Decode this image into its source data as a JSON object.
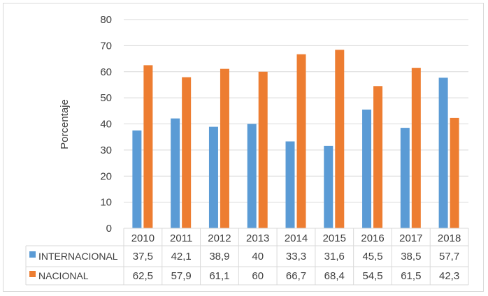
{
  "chart_data": {
    "type": "bar",
    "title": "",
    "xlabel": "",
    "ylabel": "Porcentaje",
    "ylim": [
      0,
      80
    ],
    "yticks": [
      0,
      10,
      20,
      30,
      40,
      50,
      60,
      70,
      80
    ],
    "grid": true,
    "legend": "data-table",
    "categories": [
      "2010",
      "2011",
      "2012",
      "2013",
      "2014",
      "2015",
      "2016",
      "2017",
      "2018"
    ],
    "series": [
      {
        "name": "INTERNACIONAL",
        "color": "#5b9bd5",
        "values": [
          37.5,
          42.1,
          38.9,
          40,
          33.3,
          31.6,
          45.5,
          38.5,
          57.7
        ],
        "labels": [
          "37,5",
          "42,1",
          "38,9",
          "40",
          "33,3",
          "31,6",
          "45,5",
          "38,5",
          "57,7"
        ]
      },
      {
        "name": "NACIONAL",
        "color": "#ed7d31",
        "values": [
          62.5,
          57.9,
          61.1,
          60,
          66.7,
          68.4,
          54.5,
          61.5,
          42.3
        ],
        "labels": [
          "62,5",
          "57,9",
          "61,1",
          "60",
          "66,7",
          "68,4",
          "54,5",
          "61,5",
          "42,3"
        ]
      }
    ]
  }
}
